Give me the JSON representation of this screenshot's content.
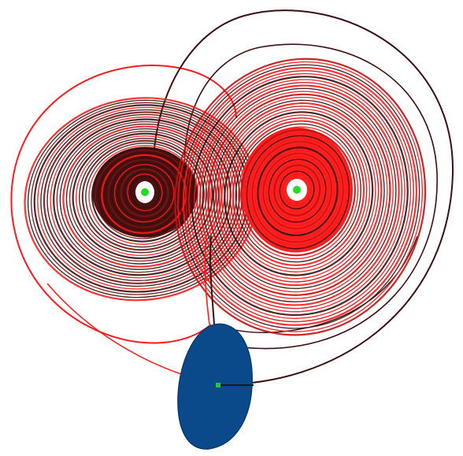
{
  "figure": {
    "type": "strange-attractor-trajectories",
    "background": "#ffffff",
    "colors": {
      "trajectory_red": "#ff1a1a",
      "trajectory_dark": "#3a0f0f",
      "left_core_fill": "#4a1010",
      "right_core_fill": "#ff2020",
      "blob_fill": "#0a4a8a",
      "fixed_point": "#22dd22",
      "white_center": "#ffffff"
    },
    "elements": [
      "left-attractor-lobe",
      "right-attractor-lobe",
      "outer-red-trajectory",
      "outer-dark-trajectory",
      "blue-basin-blob",
      "left-fixed-point",
      "right-fixed-point",
      "initial-point"
    ]
  }
}
